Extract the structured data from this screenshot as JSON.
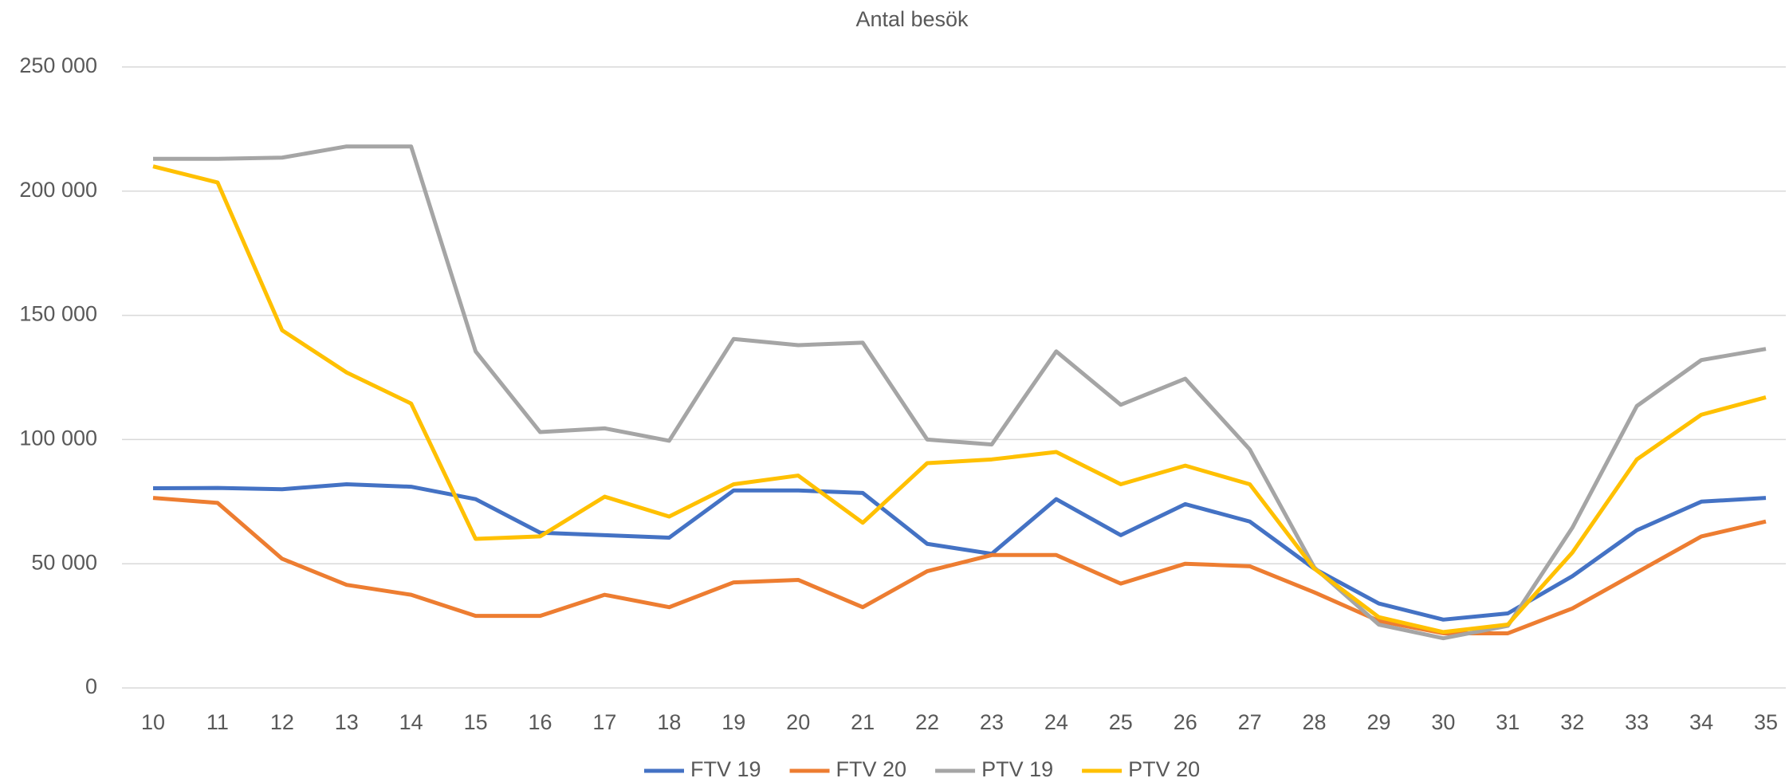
{
  "chart_data": {
    "type": "line",
    "title": "Antal besök",
    "categories": [
      "10",
      "11",
      "12",
      "13",
      "14",
      "15",
      "16",
      "17",
      "18",
      "19",
      "20",
      "21",
      "22",
      "23",
      "24",
      "25",
      "26",
      "27",
      "28",
      "29",
      "30",
      "31",
      "32",
      "33",
      "34",
      "35"
    ],
    "ylim": [
      0,
      250000
    ],
    "yticks": [
      {
        "value": 0,
        "label": "0"
      },
      {
        "value": 50000,
        "label": "50 000"
      },
      {
        "value": 100000,
        "label": "100 000"
      },
      {
        "value": 150000,
        "label": "150 000"
      },
      {
        "value": 200000,
        "label": "200 000"
      },
      {
        "value": 250000,
        "label": "250 000"
      }
    ],
    "grid": true,
    "legend": "bottom",
    "series": [
      {
        "name": "FTV 19",
        "color": "#4472c4",
        "values": [
          80400,
          80500,
          80000,
          82000,
          81000,
          76000,
          62500,
          61500,
          60500,
          79500,
          79500,
          78500,
          58000,
          54000,
          76000,
          61500,
          74000,
          67000,
          48000,
          34000,
          27500,
          30000,
          45000,
          63500,
          75000,
          76500
        ]
      },
      {
        "name": "FTV 20",
        "color": "#ed7d31",
        "values": [
          76500,
          74500,
          52000,
          41500,
          37500,
          29000,
          29000,
          37500,
          32500,
          42500,
          43500,
          32500,
          47000,
          53500,
          53500,
          42000,
          50000,
          49000,
          38500,
          27000,
          22000,
          22000,
          32000,
          46500,
          61000,
          67000
        ]
      },
      {
        "name": "PTV 19",
        "color": "#a5a5a5",
        "values": [
          213000,
          213000,
          213500,
          218000,
          218000,
          135500,
          103000,
          104500,
          99500,
          140500,
          138000,
          139000,
          100000,
          98000,
          135500,
          114000,
          124500,
          96000,
          48500,
          25500,
          20000,
          25000,
          64500,
          113500,
          132000,
          136500
        ]
      },
      {
        "name": "PTV 20",
        "color": "#ffc000",
        "values": [
          210000,
          203500,
          144000,
          127000,
          114500,
          60000,
          61000,
          77000,
          69000,
          82000,
          85500,
          66500,
          90500,
          92000,
          95000,
          82000,
          89500,
          82000,
          48000,
          28500,
          22500,
          25500,
          54500,
          92000,
          110000,
          117000
        ]
      }
    ]
  }
}
